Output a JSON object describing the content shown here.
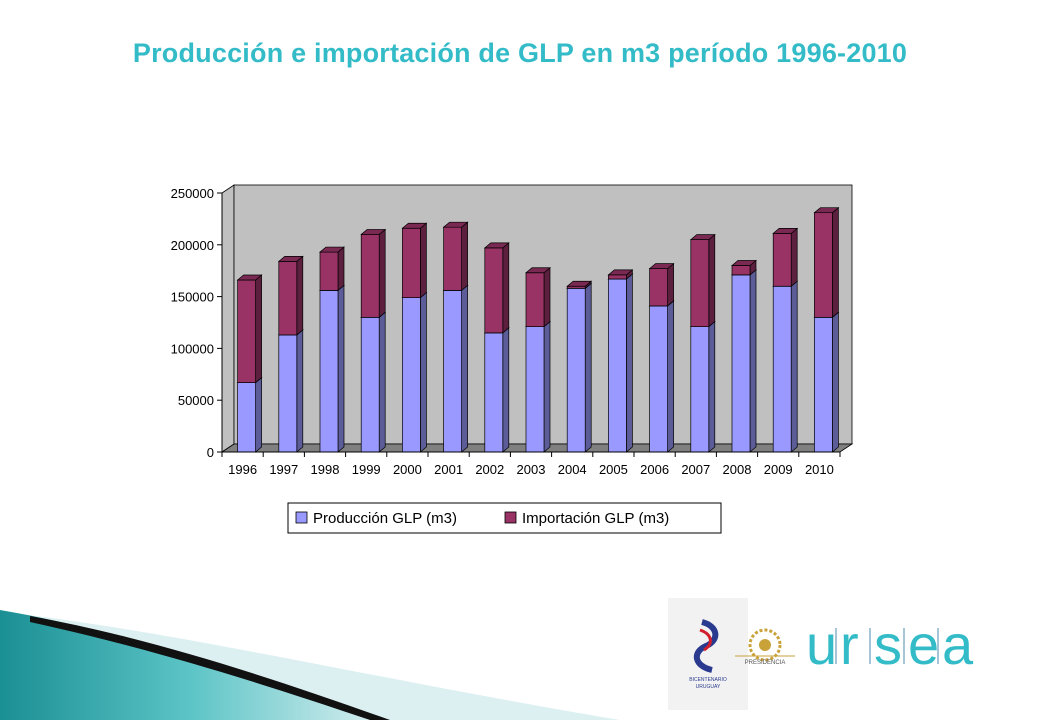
{
  "slide": {
    "title": "Producción e importación de GLP en m3 período 1996-2010"
  },
  "chart_data": {
    "type": "bar",
    "stacked": true,
    "three_d": true,
    "categories": [
      "1996",
      "1997",
      "1998",
      "1999",
      "2000",
      "2001",
      "2002",
      "2003",
      "2004",
      "2005",
      "2006",
      "2007",
      "2008",
      "2009",
      "2010"
    ],
    "series": [
      {
        "name": "Producción GLP (m3)",
        "color": "#9999ff",
        "values": [
          67000,
          113000,
          156000,
          130000,
          149000,
          156000,
          115000,
          121000,
          158000,
          167000,
          141000,
          121000,
          171000,
          160000,
          130000
        ]
      },
      {
        "name": "Importación GLP (m3)",
        "color": "#993366",
        "values": [
          99000,
          71000,
          37000,
          80000,
          67000,
          61000,
          82000,
          52000,
          2000,
          4000,
          36000,
          84000,
          9000,
          51000,
          101000
        ]
      }
    ],
    "ylim": [
      0,
      250000
    ],
    "yticks": [
      "0",
      "50000",
      "100000",
      "150000",
      "200000",
      "250000"
    ],
    "grid": false,
    "legend_position": "bottom",
    "wall_color": "#c0c0c0",
    "floor_color": "#808080"
  },
  "logos": {
    "urse_letters": [
      "u",
      "r",
      "s",
      "e",
      "a"
    ],
    "bicentenario_lines": [
      "BICENTENARIO",
      "URUGUAY"
    ],
    "presidencia_text": "PRESIDENCIA"
  }
}
